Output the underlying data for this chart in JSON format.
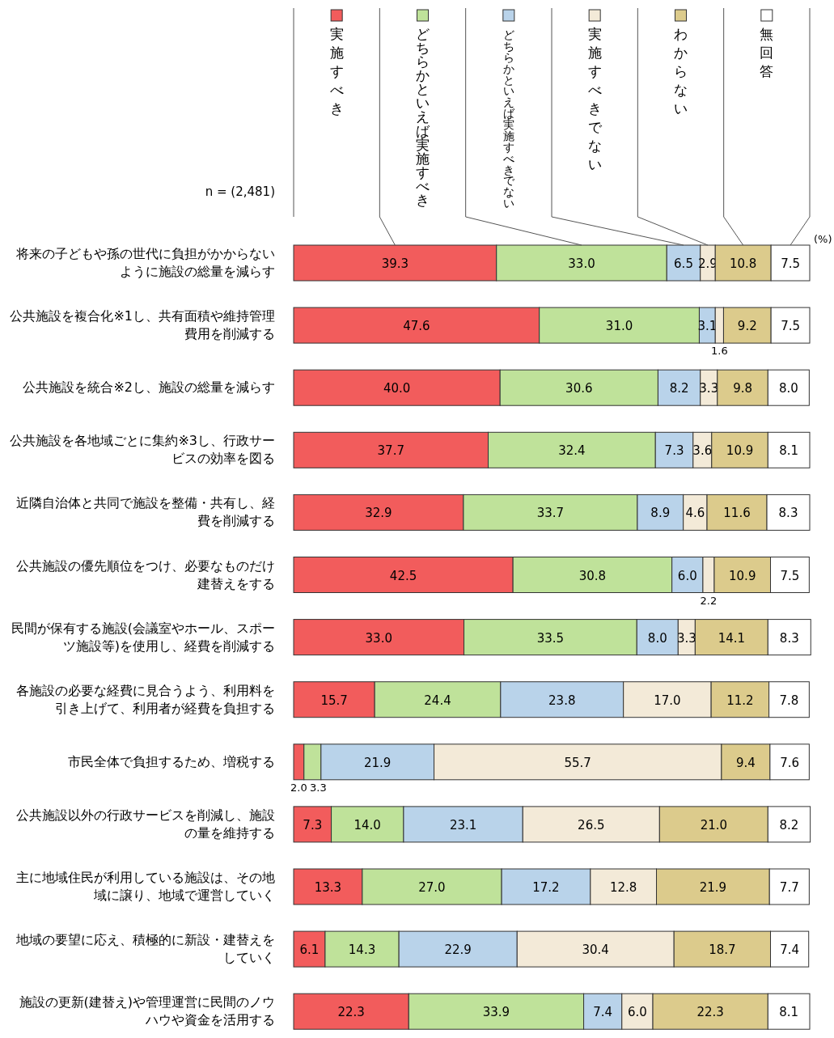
{
  "chart_data": {
    "type": "bar",
    "orientation": "horizontal",
    "stacked": true,
    "xlim": [
      0,
      100
    ],
    "tick_labels": false,
    "legend": "top",
    "annotations": [
      "n = (2,481)",
      "(%)"
    ],
    "categories": [
      "将来の子どもや孫の世代に負担がかからないように施設の総量を減らす",
      "公共施設を複合化※1し、共有面積や維持管理費用を削減する",
      "公共施設を統合※2し、施設の総量を減らす",
      "公共施設を各地域ごとに集約※3し、行政サービスの効率を図る",
      "近隣自治体と共同で施設を整備・共有し、経費を削減する",
      "公共施設の優先順位をつけ、必要なものだけ建替えをする",
      "民間が保有する施設(会議室やホール、スポーツ施設等)を使用し、経費を削減する",
      "各施設の必要な経費に見合うよう、利用料を引き上げて、利用者が経費を負担する",
      "市民全体で負担するため、増税する",
      "公共施設以外の行政サービスを削減し、施設の量を維持する",
      "主に地域住民が利用している施設は、その地域に譲り、地域で運営していく",
      "地域の要望に応え、積極的に新設・建替えをしていく",
      "施設の更新(建替え)や管理運営に民間のノウハウや資金を活用する"
    ],
    "series": [
      {
        "name": "実施すべき",
        "color": "#f25c5c",
        "values": [
          39.3,
          47.6,
          40.0,
          37.7,
          32.9,
          42.5,
          33.0,
          15.7,
          2.0,
          7.3,
          13.3,
          6.1,
          22.3
        ],
        "value_labels": [
          "39.3",
          "47.6",
          "40.0",
          "37.7",
          "32.9",
          "42.5",
          "33.0",
          "15.7",
          "2.0",
          "7.3",
          "13.3",
          "6.1",
          "22.3"
        ]
      },
      {
        "name": "どちらかといえば実施すべき",
        "color": "#bfe29a",
        "values": [
          33.0,
          31.0,
          30.6,
          32.4,
          33.7,
          30.8,
          33.5,
          24.4,
          3.3,
          14.0,
          27.0,
          14.3,
          33.9
        ],
        "value_labels": [
          "33.0",
          "31.0",
          "30.6",
          "32.4",
          "33.7",
          "30.8",
          "33.5",
          "24.4",
          "3.3",
          "14.0",
          "27.0",
          "14.3",
          "33.9"
        ]
      },
      {
        "name": "どちらかといえば実施すべきでない",
        "color": "#b9d3ea",
        "values": [
          6.5,
          3.1,
          8.2,
          7.3,
          8.9,
          6.0,
          8.0,
          23.8,
          21.9,
          23.1,
          17.2,
          22.9,
          7.4
        ],
        "value_labels": [
          "6.5",
          "3.1",
          "8.2",
          "7.3",
          "8.9",
          "6.0",
          "8.0",
          "23.8",
          "21.9",
          "23.1",
          "17.2",
          "22.9",
          "7.4"
        ]
      },
      {
        "name": "実施すべきでない",
        "color": "#f3ead8",
        "values": [
          2.9,
          1.6,
          3.3,
          3.6,
          4.6,
          2.2,
          3.3,
          17.0,
          55.7,
          26.5,
          12.8,
          30.4,
          6.0
        ],
        "value_labels": [
          "2.9",
          "1.6",
          "3.3",
          "3.6",
          "4.6",
          "2.2",
          "3.3",
          "17.0",
          "55.7",
          "26.5",
          "12.8",
          "30.4",
          "6.0"
        ]
      },
      {
        "name": "わからない",
        "color": "#dccb8c",
        "values": [
          10.8,
          9.2,
          9.8,
          10.9,
          11.6,
          10.9,
          14.1,
          11.2,
          9.4,
          21.0,
          21.9,
          18.7,
          22.3
        ],
        "value_labels": [
          "10.8",
          "9.2",
          "9.8",
          "10.9",
          "11.6",
          "10.9",
          "14.1",
          "11.2",
          "9.4",
          "21.0",
          "21.9",
          "18.7",
          "22.3"
        ]
      },
      {
        "name": "無回答",
        "color": "#ffffff",
        "values": [
          7.5,
          7.5,
          8.0,
          8.1,
          8.3,
          7.5,
          8.3,
          7.8,
          7.6,
          8.2,
          7.7,
          7.4,
          8.1
        ],
        "value_labels": [
          "7.5",
          "7.5",
          "8.0",
          "8.1",
          "8.3",
          "7.5",
          "8.3",
          "7.8",
          "7.6",
          "8.2",
          "7.7",
          "7.4",
          "8.1"
        ]
      }
    ]
  }
}
